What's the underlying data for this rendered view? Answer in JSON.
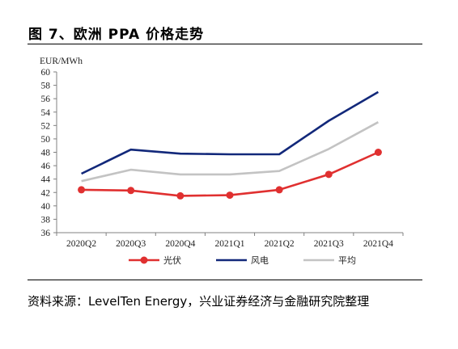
{
  "figure": {
    "title": "图 7、欧洲 PPA 价格走势",
    "source": "资料来源：LevelTen Energy，兴业证券经济与金融研究院整理"
  },
  "chart_data": {
    "type": "line",
    "ylabel": "EUR/MWh",
    "ylim": [
      36,
      60
    ],
    "ytick_step": 2,
    "categories": [
      "2020Q2",
      "2020Q3",
      "2020Q4",
      "2021Q1",
      "2021Q2",
      "2021Q3",
      "2021Q4"
    ],
    "grid": false,
    "legend_position": "bottom",
    "series": [
      {
        "name": "光伏",
        "values": [
          42.4,
          42.3,
          41.5,
          41.6,
          42.4,
          44.7,
          48.0
        ],
        "color": "#e03030",
        "marker": "circle"
      },
      {
        "name": "风电",
        "values": [
          44.8,
          48.4,
          47.8,
          47.7,
          47.7,
          52.7,
          57.0
        ],
        "color": "#12287a",
        "marker": "none"
      },
      {
        "name": "平均",
        "values": [
          43.7,
          45.4,
          44.7,
          44.7,
          45.2,
          48.5,
          52.5
        ],
        "color": "#c3c3c3",
        "marker": "none"
      }
    ]
  }
}
